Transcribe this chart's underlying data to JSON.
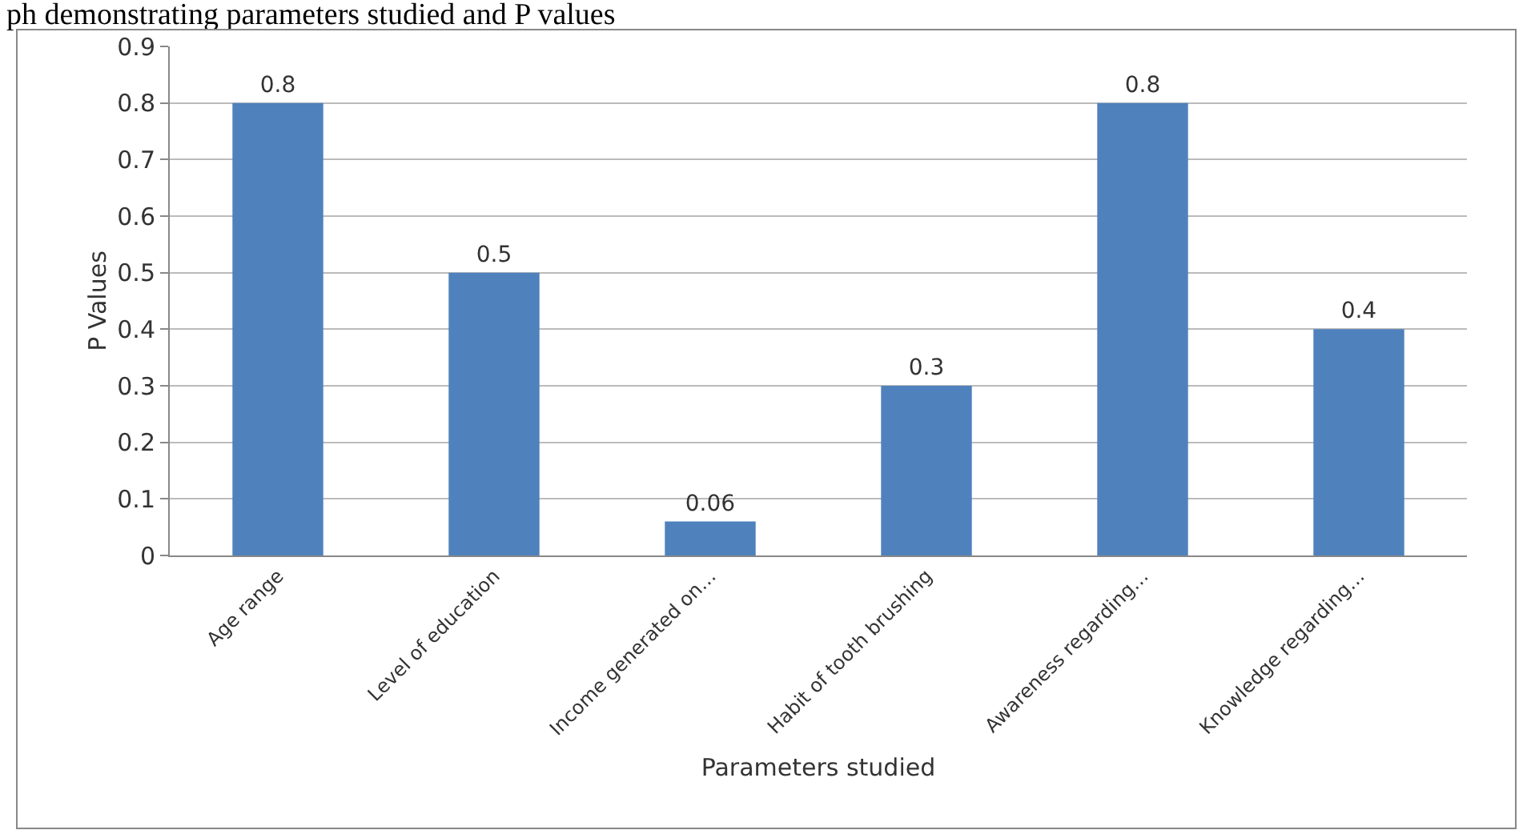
{
  "chart_data": {
    "type": "bar",
    "annotations": [
      "ph demonstrating parameters studied and P values"
    ],
    "xlabel": "Parameters studied",
    "ylabel": "P Values",
    "categories": [
      "Age range",
      "Level of education",
      "Income generated on…",
      "Habit of tooth brushing",
      "Awareness regarding…",
      "Knowledge regarding…"
    ],
    "values": [
      0.8,
      0.5,
      0.06,
      0.3,
      0.8,
      0.4
    ],
    "color": "#4f81bd",
    "data_labels": true,
    "ylim": [
      0,
      0.9
    ],
    "yticks": [
      0,
      0.1,
      0.2,
      0.3,
      0.4,
      0.5,
      0.6,
      0.7,
      0.8,
      0.9
    ],
    "grid": "y",
    "legend": false
  }
}
